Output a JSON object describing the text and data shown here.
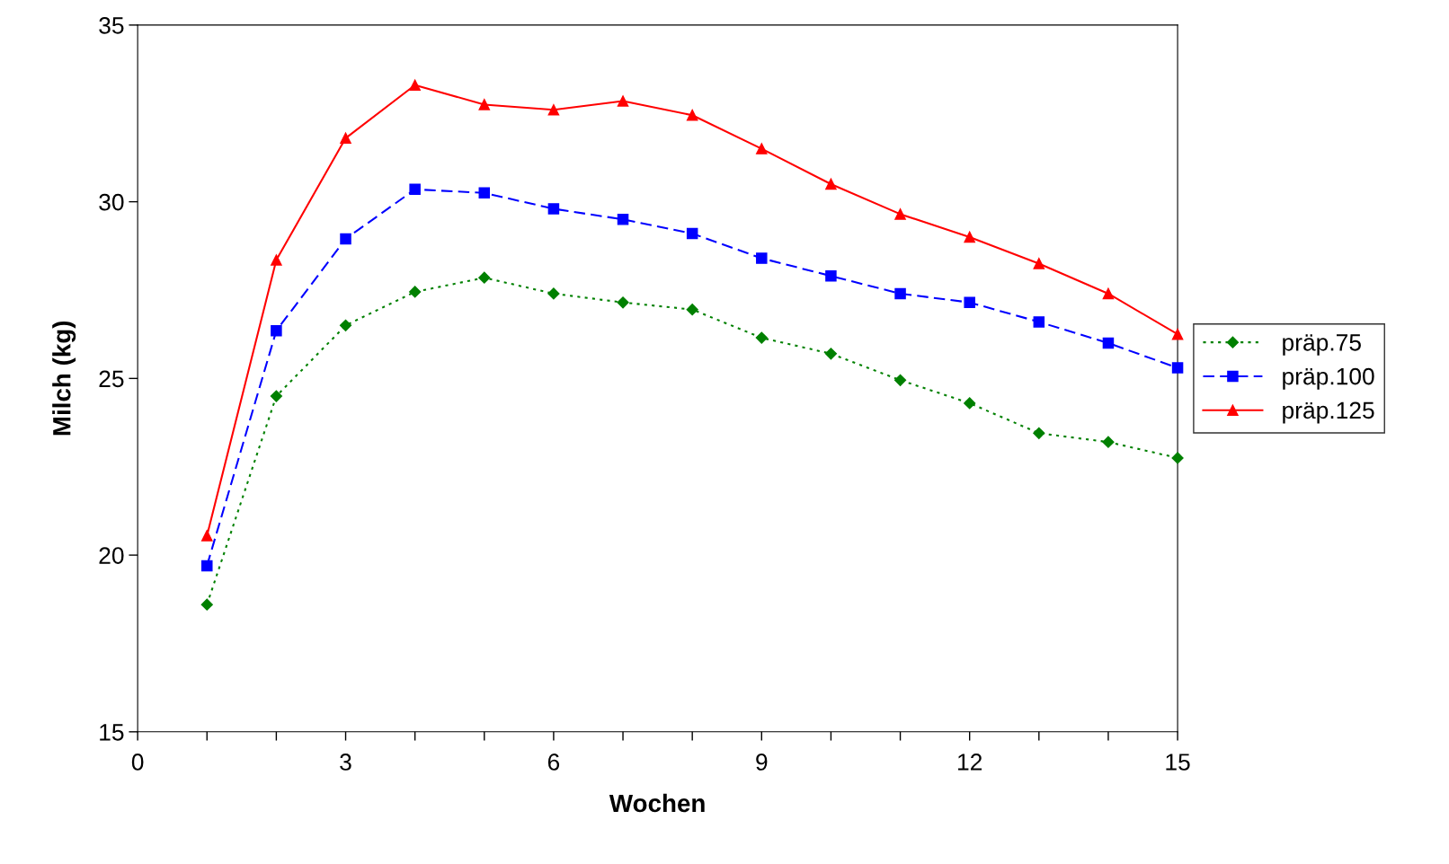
{
  "chart_data": {
    "type": "line",
    "xlabel": "Wochen",
    "ylabel": "Milch (kg)",
    "x": [
      1,
      2,
      3,
      4,
      5,
      6,
      7,
      8,
      9,
      10,
      11,
      12,
      13,
      14,
      15
    ],
    "series": [
      {
        "name": "präp.75",
        "color": "#008000",
        "marker": "diamond",
        "line_style": "dotted",
        "values": [
          18.6,
          24.5,
          26.5,
          27.45,
          27.85,
          27.4,
          27.15,
          26.95,
          26.15,
          25.7,
          24.95,
          24.3,
          23.45,
          23.2,
          22.75
        ]
      },
      {
        "name": "präp.100",
        "color": "#0000ff",
        "marker": "square",
        "line_style": "dashed",
        "values": [
          19.7,
          26.35,
          28.95,
          30.35,
          30.25,
          29.8,
          29.5,
          29.1,
          28.4,
          27.9,
          27.4,
          27.15,
          26.6,
          26.0,
          25.3
        ]
      },
      {
        "name": "präp.125",
        "color": "#ff0000",
        "marker": "triangle",
        "line_style": "solid",
        "values": [
          20.55,
          28.35,
          31.8,
          33.3,
          32.75,
          32.6,
          32.85,
          32.45,
          31.5,
          30.5,
          29.65,
          29.0,
          28.25,
          27.4,
          26.25
        ]
      }
    ],
    "xlim": [
      0,
      15
    ],
    "ylim": [
      15,
      35
    ],
    "xticks": [
      0,
      {
        "value": 1,
        "label": null
      },
      {
        "value": 2,
        "label": null
      },
      3,
      {
        "value": 4,
        "label": null
      },
      {
        "value": 5,
        "label": null
      },
      6,
      {
        "value": 7,
        "label": null
      },
      {
        "value": 8,
        "label": null
      },
      9,
      {
        "value": 10,
        "label": null
      },
      {
        "value": 11,
        "label": null
      },
      12,
      {
        "value": 13,
        "label": null
      },
      {
        "value": 14,
        "label": null
      },
      15
    ],
    "yticks": [
      15,
      20,
      25,
      30,
      35
    ],
    "grid": false,
    "legend": "right"
  }
}
